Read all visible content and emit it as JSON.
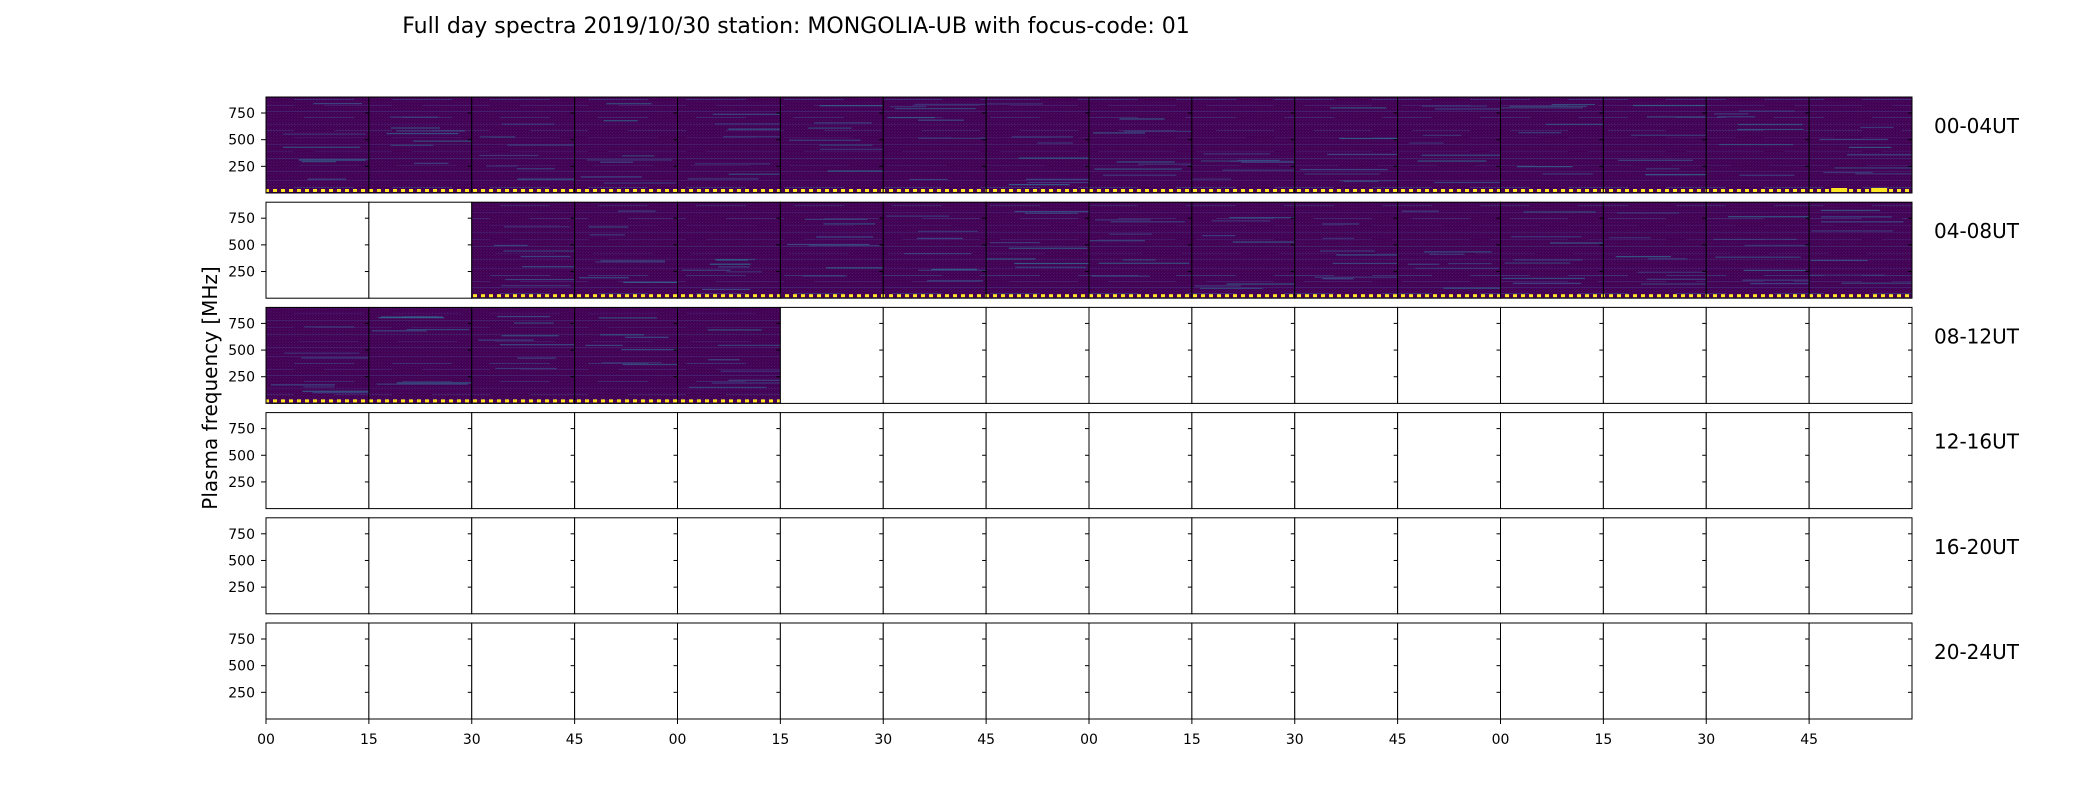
{
  "chart_data": {
    "type": "heatmap",
    "title": "Full day spectra 2019/10/30 station: MONGOLIA-UB with focus-code: 01",
    "ylabel": "Plasma frequency [MHz]",
    "y_ticks": [
      250,
      500,
      750
    ],
    "ylim": [
      0,
      900
    ],
    "x_ticks": [
      "00",
      "15",
      "30",
      "45",
      "00",
      "15",
      "30",
      "45",
      "00",
      "15",
      "30",
      "45",
      "00",
      "15",
      "30",
      "45"
    ],
    "panels_per_row": 16,
    "colormap": [
      "#440154",
      "#481f70",
      "#2c728e",
      "#20a486",
      "#fde725"
    ],
    "rows": [
      {
        "label": "00-04UT",
        "filled": [
          true,
          true,
          true,
          true,
          true,
          true,
          true,
          true,
          true,
          true,
          true,
          true,
          true,
          true,
          true,
          true
        ]
      },
      {
        "label": "04-08UT",
        "filled": [
          false,
          false,
          true,
          true,
          true,
          true,
          true,
          true,
          true,
          true,
          true,
          true,
          true,
          true,
          true,
          true
        ]
      },
      {
        "label": "08-12UT",
        "filled": [
          true,
          true,
          true,
          true,
          true,
          false,
          false,
          false,
          false,
          false,
          false,
          false,
          false,
          false,
          false,
          false
        ]
      },
      {
        "label": "12-16UT",
        "filled": [
          false,
          false,
          false,
          false,
          false,
          false,
          false,
          false,
          false,
          false,
          false,
          false,
          false,
          false,
          false,
          false
        ]
      },
      {
        "label": "16-20UT",
        "filled": [
          false,
          false,
          false,
          false,
          false,
          false,
          false,
          false,
          false,
          false,
          false,
          false,
          false,
          false,
          false,
          false
        ]
      },
      {
        "label": "20-24UT",
        "filled": [
          false,
          false,
          false,
          false,
          false,
          false,
          false,
          false,
          false,
          false,
          false,
          false,
          false,
          false,
          false,
          false
        ]
      }
    ]
  }
}
